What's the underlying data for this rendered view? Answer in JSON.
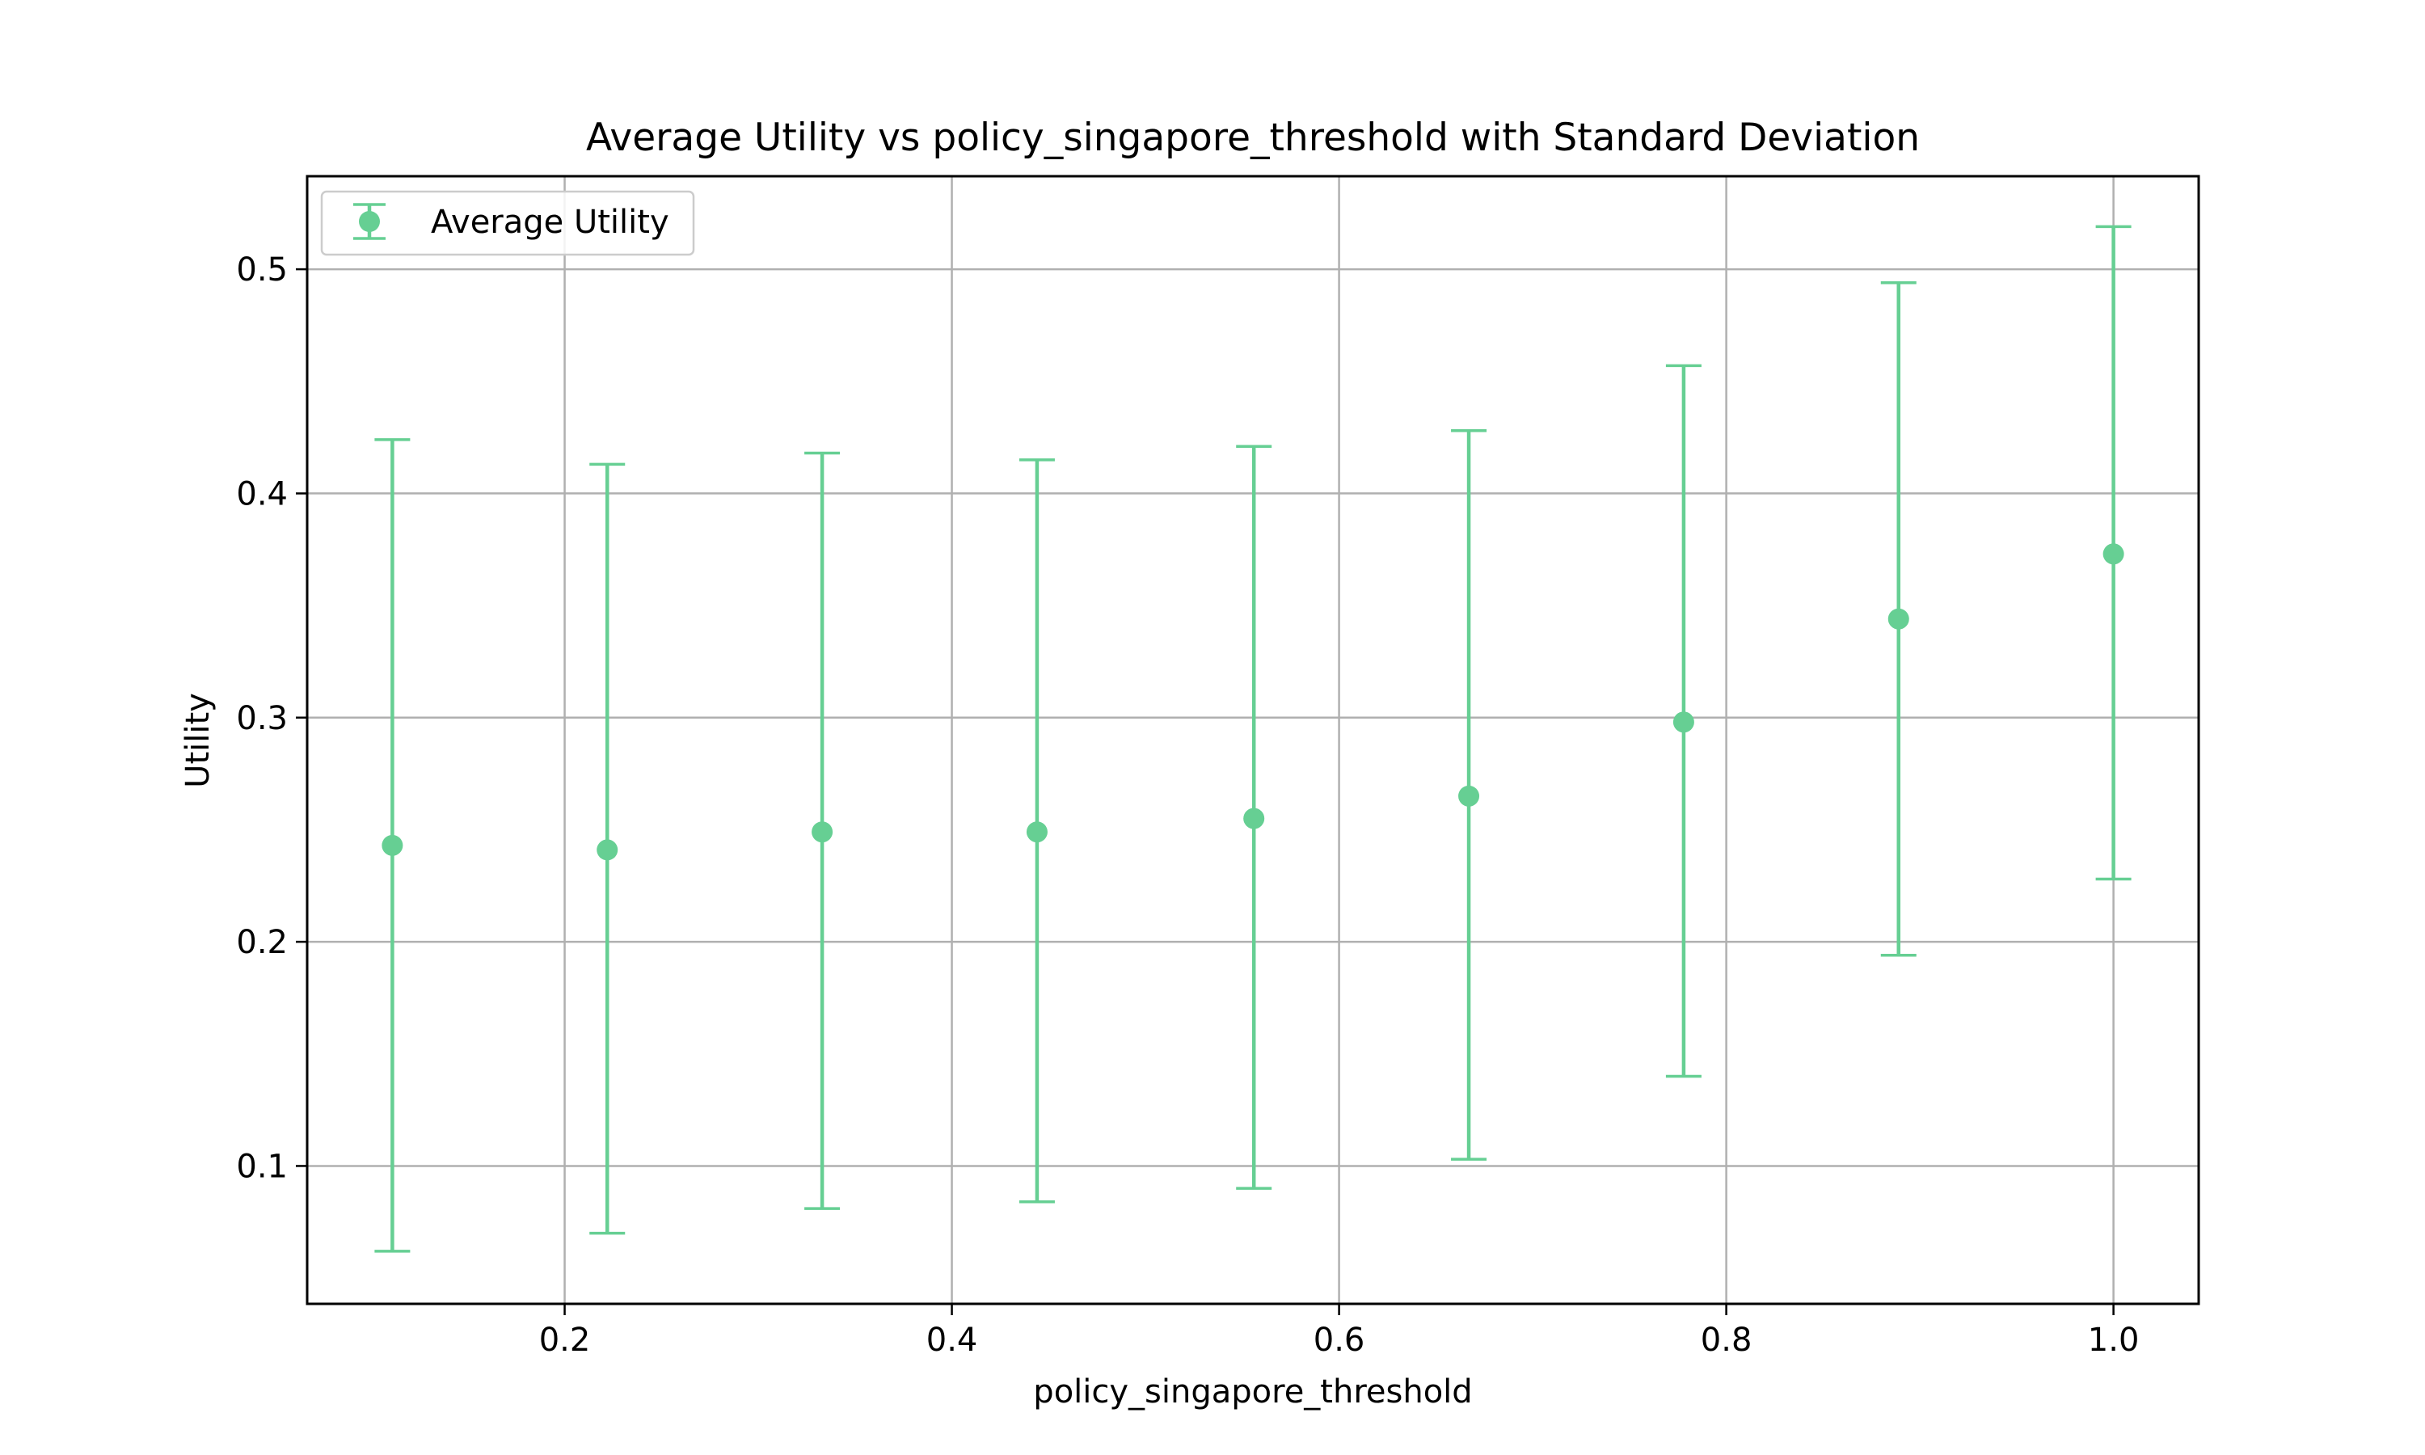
{
  "chart_data": {
    "type": "scatter",
    "title": "Average Utility vs policy_singapore_threshold with Standard Deviation",
    "xlabel": "policy_singapore_threshold",
    "ylabel": "Utility",
    "xlim": [
      0.067,
      1.044
    ],
    "ylim": [
      0.0385,
      0.5415
    ],
    "x_ticks": [
      0.2,
      0.4,
      0.6,
      0.8,
      1.0
    ],
    "x_tick_labels": [
      "0.2",
      "0.4",
      "0.6",
      "0.8",
      "1.0"
    ],
    "y_ticks": [
      0.1,
      0.2,
      0.3,
      0.4,
      0.5
    ],
    "y_tick_labels": [
      "0.1",
      "0.2",
      "0.3",
      "0.4",
      "0.5"
    ],
    "grid": true,
    "legend_position": "top-left",
    "series": [
      {
        "name": "Average Utility",
        "color": "#66cf93",
        "x": [
          0.111,
          0.222,
          0.333,
          0.444,
          0.556,
          0.667,
          0.778,
          0.889,
          1.0
        ],
        "y": [
          0.243,
          0.241,
          0.249,
          0.249,
          0.255,
          0.265,
          0.298,
          0.344,
          0.373
        ],
        "yerr_low": [
          0.062,
          0.07,
          0.081,
          0.084,
          0.09,
          0.103,
          0.14,
          0.194,
          0.228
        ],
        "yerr_high": [
          0.424,
          0.413,
          0.418,
          0.415,
          0.421,
          0.428,
          0.457,
          0.494,
          0.519
        ]
      }
    ]
  }
}
